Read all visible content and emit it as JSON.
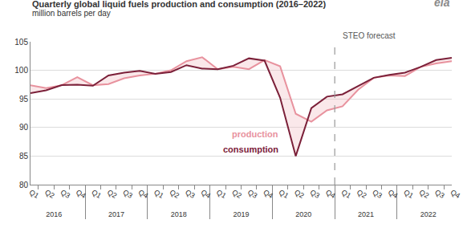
{
  "chart_data": {
    "type": "line",
    "title": "Quarterly global liquid fuels production and consumption (2016–2022)",
    "subtitle": "million barrels per day",
    "logo": "eia",
    "categories": [
      "Q1",
      "Q2",
      "Q3",
      "Q4",
      "Q1",
      "Q2",
      "Q3",
      "Q4",
      "Q1",
      "Q2",
      "Q3",
      "Q4",
      "Q1",
      "Q2",
      "Q3",
      "Q4",
      "Q1",
      "Q2",
      "Q3",
      "Q4",
      "Q1",
      "Q2",
      "Q3",
      "Q4",
      "Q1",
      "Q2",
      "Q3",
      "Q4"
    ],
    "groups": [
      "2016",
      "2017",
      "2018",
      "2019",
      "2020",
      "2021",
      "2022"
    ],
    "series": [
      {
        "name": "production",
        "color": "#e8929e",
        "values": [
          97.4,
          96.9,
          97.4,
          98.8,
          97.4,
          97.6,
          98.6,
          99.1,
          99.4,
          100.0,
          101.6,
          102.3,
          100.2,
          100.6,
          100.2,
          101.8,
          100.7,
          92.4,
          91.0,
          93.0,
          93.7,
          96.6,
          98.7,
          99.1,
          99.0,
          100.6,
          101.2,
          101.6
        ]
      },
      {
        "name": "consumption",
        "color": "#7b2039",
        "values": [
          96.0,
          96.5,
          97.4,
          97.5,
          97.3,
          99.1,
          99.6,
          99.9,
          99.4,
          99.7,
          100.9,
          100.3,
          100.2,
          100.8,
          102.1,
          101.7,
          95.2,
          85.0,
          93.4,
          95.4,
          95.8,
          97.3,
          98.7,
          99.2,
          99.6,
          100.6,
          101.8,
          102.2
        ]
      }
    ],
    "forecast": {
      "label": "STEO forecast",
      "after": [
        "2020",
        "Q4"
      ]
    },
    "ylim": [
      80,
      105
    ],
    "yticks": [
      80,
      85,
      90,
      95,
      100,
      105
    ],
    "grid": true
  }
}
